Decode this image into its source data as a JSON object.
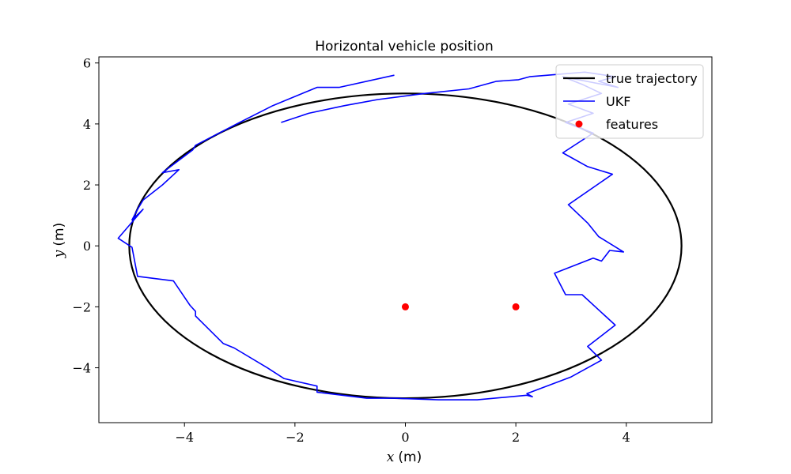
{
  "chart_data": {
    "type": "line",
    "title": "Horizontal vehicle position",
    "xlabel_var": "x",
    "xlabel_unit": "(m)",
    "ylabel_var": "y",
    "ylabel_unit": "(m)",
    "xlim": [
      -5.55,
      5.55
    ],
    "ylim": [
      -5.8,
      6.2
    ],
    "xticks": [
      -4,
      -2,
      0,
      2,
      4
    ],
    "xtick_labels": [
      "−4",
      "−2",
      "0",
      "2",
      "4"
    ],
    "yticks": [
      -4,
      -2,
      0,
      2,
      4,
      6
    ],
    "ytick_labels": [
      "−4",
      "−2",
      "0",
      "2",
      "4",
      "6"
    ],
    "grid": false,
    "legend_position": "top-right",
    "series": [
      {
        "name": "true trajectory",
        "kind": "ellipse",
        "center": [
          0,
          0
        ],
        "radii": [
          5,
          5
        ],
        "color": "#000000"
      },
      {
        "name": "UKF",
        "kind": "line",
        "color": "#0000ff",
        "x": [
          -0.2,
          -1.2,
          -1.6,
          -2.4,
          -3.0,
          -3.8,
          -3.85,
          -4.4,
          -4.1,
          -4.4,
          -4.75,
          -4.85,
          -4.95,
          -4.75,
          -5.2,
          -4.95,
          -4.85,
          -4.2,
          -3.9,
          -3.8,
          -3.8,
          -3.3,
          -3.1,
          -2.5,
          -2.2,
          -1.6,
          -1.6,
          -0.7,
          -0.2,
          0.6,
          1.3,
          2.2,
          2.3,
          2.2,
          3.0,
          3.55,
          3.3,
          3.8,
          3.2,
          2.9,
          2.7,
          3.4,
          3.55,
          3.7,
          3.95,
          3.5,
          3.3,
          2.95,
          3.75,
          3.3,
          2.85,
          3.4,
          2.9,
          3.4,
          2.95,
          3.55,
          3.2,
          2.85,
          3.85,
          3.5,
          3.8,
          3.25,
          2.25,
          2.05,
          1.65,
          1.15,
          0.35,
          -0.5,
          -1.1,
          -1.75,
          -2.25
        ],
        "y": [
          5.6,
          5.2,
          5.2,
          4.6,
          4.05,
          3.3,
          3.15,
          2.4,
          2.5,
          2.0,
          1.5,
          1.2,
          0.85,
          1.2,
          0.25,
          -0.05,
          -1.0,
          -1.15,
          -1.95,
          -2.15,
          -2.3,
          -3.2,
          -3.35,
          -4.0,
          -4.35,
          -4.6,
          -4.8,
          -5.0,
          -5.0,
          -5.05,
          -5.05,
          -4.9,
          -4.95,
          -4.85,
          -4.3,
          -3.75,
          -3.3,
          -2.6,
          -1.6,
          -1.6,
          -0.9,
          -0.4,
          -0.5,
          -0.15,
          -0.2,
          0.3,
          0.75,
          1.35,
          2.35,
          2.6,
          3.05,
          3.7,
          4.05,
          4.35,
          4.65,
          5.0,
          5.3,
          5.55,
          5.2,
          5.4,
          5.55,
          5.7,
          5.55,
          5.45,
          5.4,
          5.15,
          5.0,
          4.8,
          4.6,
          4.35,
          4.05
        ]
      },
      {
        "name": "features",
        "kind": "scatter",
        "color": "#ff0000",
        "points": [
          [
            0,
            -2
          ],
          [
            2,
            -2
          ]
        ]
      }
    ]
  }
}
